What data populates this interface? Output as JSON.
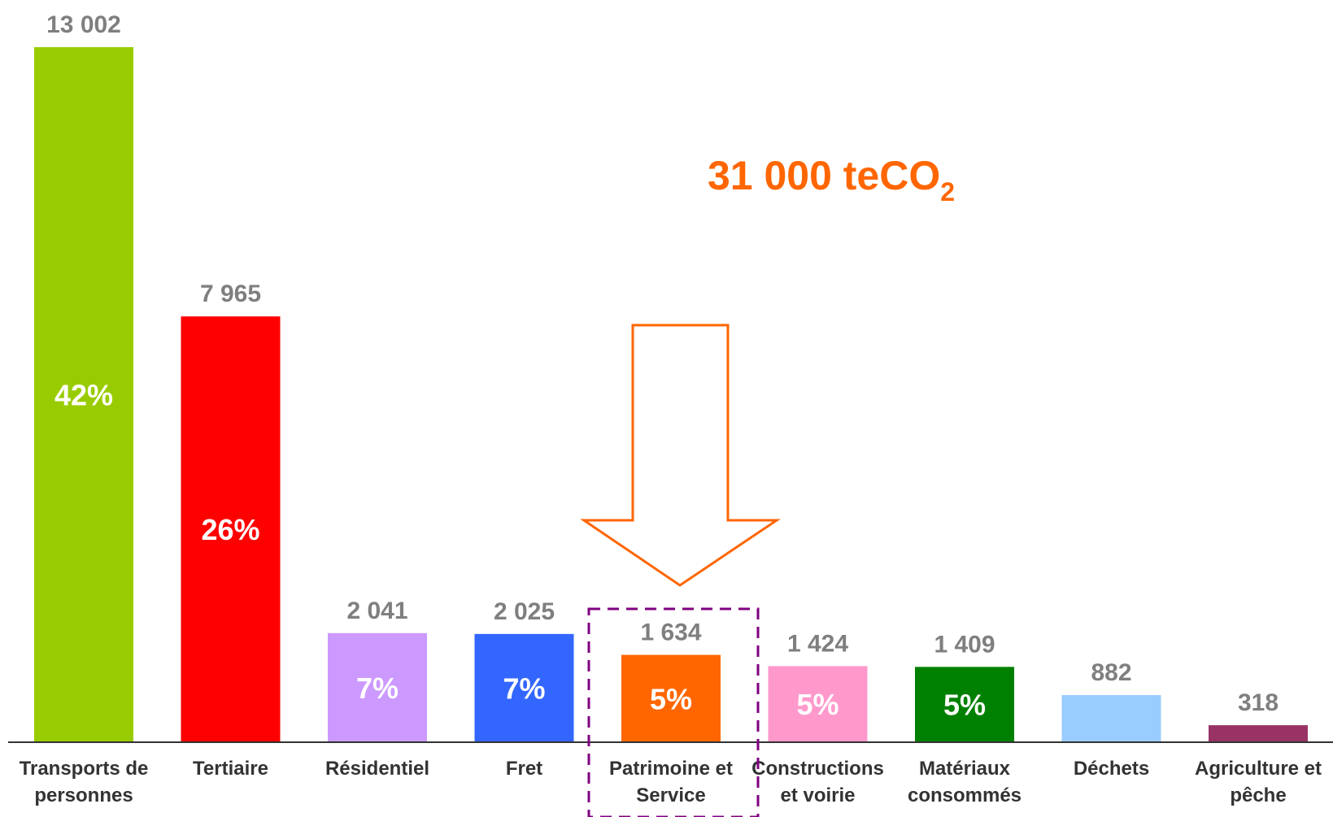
{
  "chart_data": {
    "type": "bar",
    "categories": [
      [
        "Transports de",
        "personnes"
      ],
      [
        "Tertiaire"
      ],
      [
        "Résidentiel"
      ],
      [
        "Fret"
      ],
      [
        "Patrimoine et",
        "Service"
      ],
      [
        "Constructions",
        "et voirie"
      ],
      [
        "Matériaux",
        "consommés"
      ],
      [
        "Déchets"
      ],
      [
        "Agriculture et",
        "pêche"
      ]
    ],
    "values": [
      13002,
      7965,
      2041,
      2025,
      1634,
      1424,
      1409,
      882,
      318
    ],
    "value_labels": [
      "13 002",
      "7 965",
      "2 041",
      "2 025",
      "1 634",
      "1 424",
      "1 409",
      "882",
      "318"
    ],
    "percent_labels": [
      "42%",
      "26%",
      "7%",
      "7%",
      "5%",
      "5%",
      "5%",
      "",
      ""
    ],
    "colors": [
      "#99cc00",
      "#ff0000",
      "#cc99ff",
      "#3366ff",
      "#ff6600",
      "#ff99cc",
      "#008000",
      "#99ccff",
      "#993366"
    ],
    "ylim": [
      0,
      13002
    ],
    "grid": false,
    "highlighted_category_index": 4,
    "annotation": {
      "text": "31 000 teCO",
      "subscript": "2",
      "color": "#ff6600"
    }
  }
}
